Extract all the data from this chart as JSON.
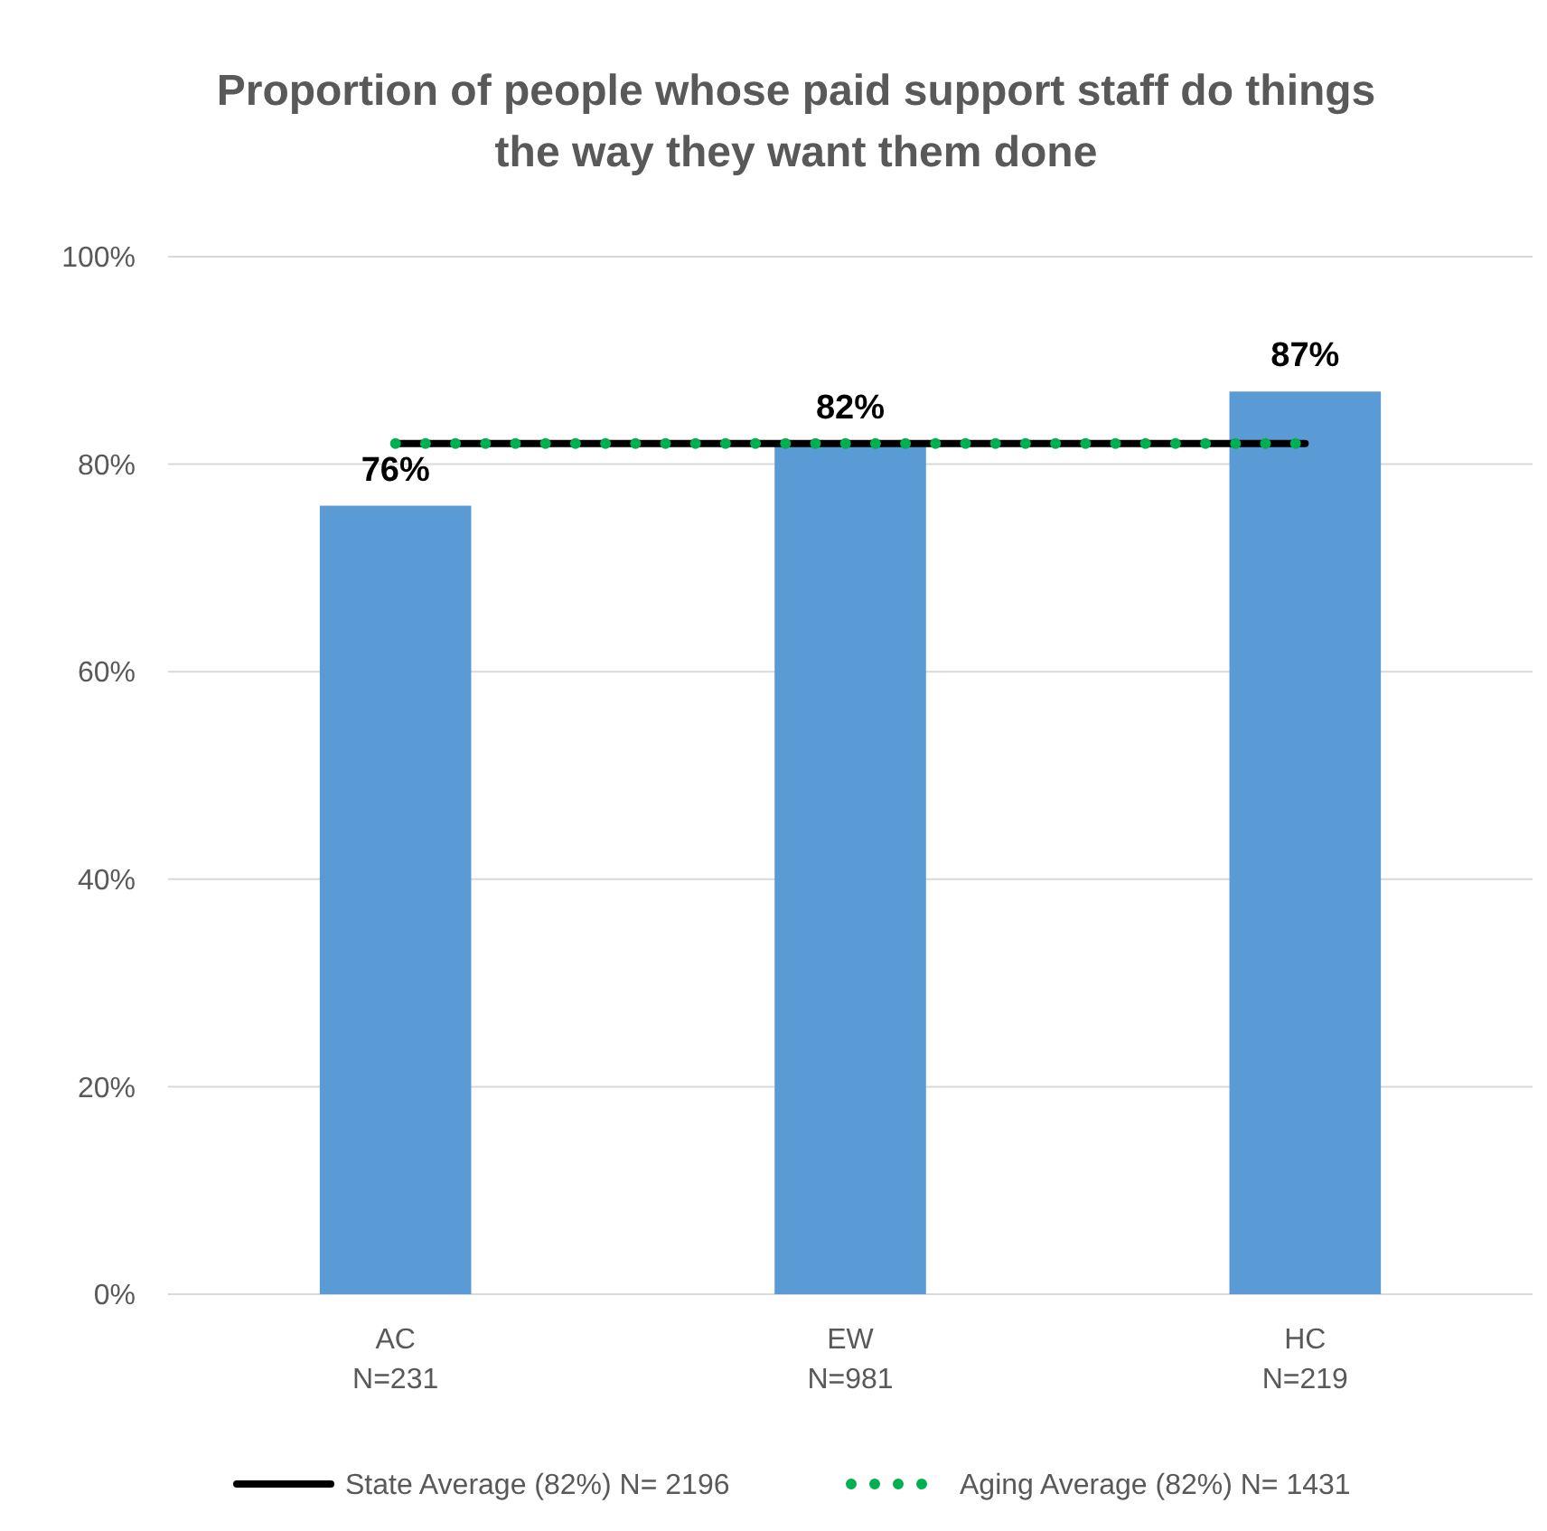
{
  "chart_data": {
    "type": "bar",
    "title": "Proportion of people whose paid support staff do things\nthe way they want them done",
    "categories": [
      "AC\nN=231",
      "EW\nN=981",
      "HC\nN=219"
    ],
    "series": [
      {
        "color": "#5b9bd5",
        "values": [
          76,
          82,
          87
        ],
        "value_labels": [
          "76%",
          "82%",
          "87%"
        ]
      },
      {
        "type": "line",
        "name": "State Average (82%) N= 2196",
        "color": "#000000",
        "values": [
          82,
          82,
          82
        ],
        "line_style": "solid",
        "marker": "none"
      },
      {
        "type": "line",
        "name": "Aging Average (82%) N= 1431",
        "color": "#00b050",
        "values": [
          82,
          82,
          82
        ],
        "line_style": "dotted",
        "marker": "none"
      }
    ],
    "ylim": [
      0,
      100
    ],
    "yticks": [
      {
        "value": 0,
        "label": "0%"
      },
      {
        "value": 20,
        "label": "20%"
      },
      {
        "value": 40,
        "label": "40%"
      },
      {
        "value": 60,
        "label": "60%"
      },
      {
        "value": 80,
        "label": "80%"
      },
      {
        "value": 100,
        "label": "100%"
      }
    ],
    "grid": "y",
    "legend": "bottom"
  }
}
